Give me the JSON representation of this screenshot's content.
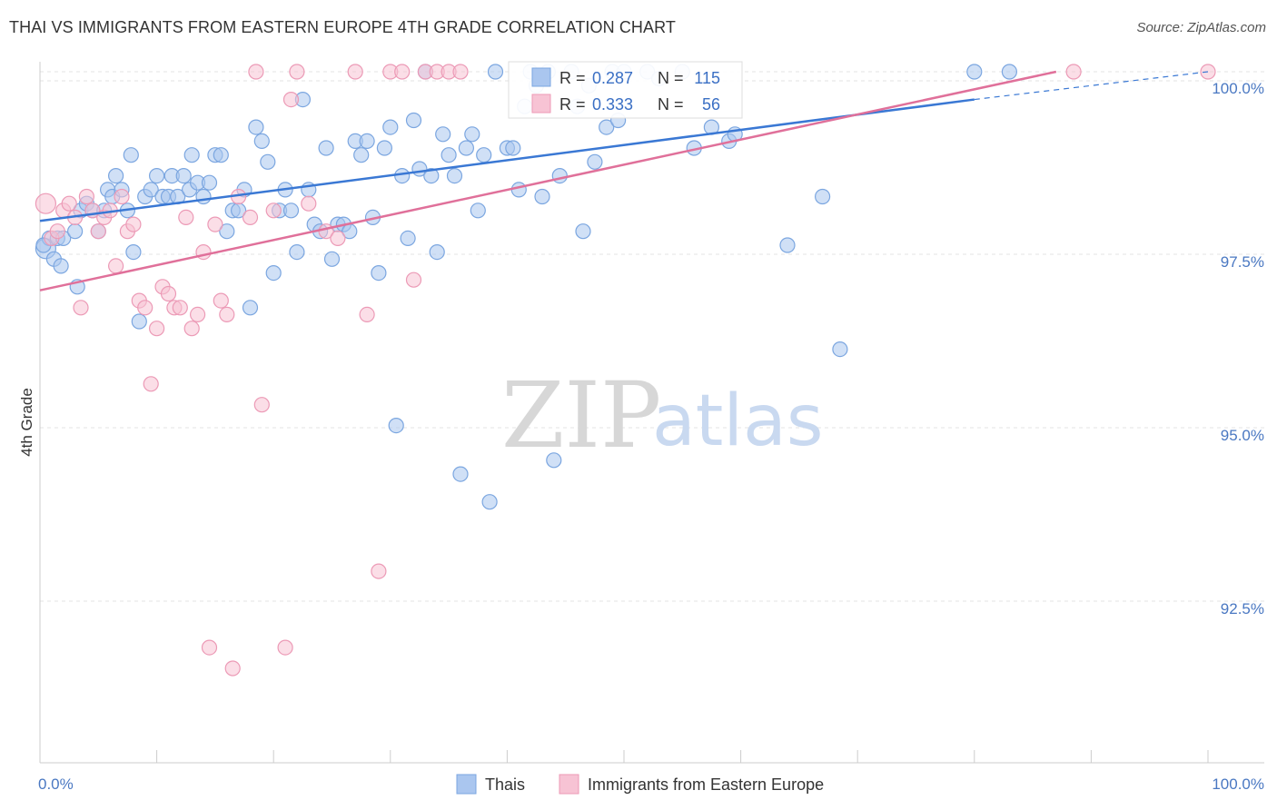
{
  "header": {
    "title": "THAI VS IMMIGRANTS FROM EASTERN EUROPE 4TH GRADE CORRELATION CHART",
    "source": "Source: ZipAtlas.com"
  },
  "watermark": {
    "zip": "ZIP",
    "atlas": "atlas"
  },
  "chart_data": {
    "type": "scatter",
    "title": "THAI VS IMMIGRANTS FROM EASTERN EUROPE 4TH GRADE CORRELATION CHART",
    "xlabel": "",
    "ylabel": "4th Grade",
    "xlim": [
      0,
      100
    ],
    "ylim": [
      90.0,
      100.4
    ],
    "x_tick_labels": [
      "0.0%",
      "100.0%"
    ],
    "y_ticks": [
      {
        "value": 100.0,
        "label": "100.0%"
      },
      {
        "value": 97.5,
        "label": "97.5%"
      },
      {
        "value": 95.0,
        "label": "95.0%"
      },
      {
        "value": 92.5,
        "label": "92.5%"
      }
    ],
    "grid": true,
    "legend_position": "top-center",
    "stats": [
      {
        "r_label": "R =",
        "r": "0.287",
        "n_label": "N =",
        "n": "115"
      },
      {
        "r_label": "R =",
        "r": "0.333",
        "n_label": "N =",
        "n": "56"
      }
    ],
    "series": [
      {
        "name": "Thais",
        "color": "#7ba6e0",
        "fill": "#aac6ef",
        "trend_color": "#3a78d4",
        "trend": {
          "x": [
            0,
            80
          ],
          "y": [
            97.85,
            99.6
          ],
          "dashed_to": [
            100,
            100.0
          ]
        },
        "points": [
          [
            0.5,
            97.45
          ],
          [
            0.8,
            97.6
          ],
          [
            1.2,
            97.3
          ],
          [
            1.5,
            97.6
          ],
          [
            2.0,
            97.6
          ],
          [
            3.0,
            97.7
          ],
          [
            3.2,
            96.9
          ],
          [
            3.5,
            98.0
          ],
          [
            4.0,
            98.1
          ],
          [
            4.5,
            98.0
          ],
          [
            5.0,
            97.7
          ],
          [
            5.5,
            98.0
          ],
          [
            5.8,
            98.3
          ],
          [
            6.2,
            98.2
          ],
          [
            6.5,
            98.5
          ],
          [
            7.0,
            98.3
          ],
          [
            7.5,
            98.0
          ],
          [
            7.8,
            98.8
          ],
          [
            8.0,
            97.4
          ],
          [
            8.5,
            96.4
          ],
          [
            9.0,
            98.2
          ],
          [
            9.5,
            98.3
          ],
          [
            10.0,
            98.5
          ],
          [
            10.5,
            98.2
          ],
          [
            11.0,
            98.2
          ],
          [
            11.3,
            98.5
          ],
          [
            11.8,
            98.2
          ],
          [
            12.3,
            98.5
          ],
          [
            12.8,
            98.3
          ],
          [
            13.0,
            98.8
          ],
          [
            13.5,
            98.4
          ],
          [
            14.0,
            98.2
          ],
          [
            14.5,
            98.4
          ],
          [
            15.0,
            98.8
          ],
          [
            15.5,
            98.8
          ],
          [
            16.0,
            97.7
          ],
          [
            16.5,
            98.0
          ],
          [
            17.0,
            98.0
          ],
          [
            17.5,
            98.3
          ],
          [
            18.0,
            96.6
          ],
          [
            18.5,
            99.2
          ],
          [
            19.0,
            99.0
          ],
          [
            19.5,
            98.7
          ],
          [
            20.0,
            97.1
          ],
          [
            20.5,
            98.0
          ],
          [
            21.0,
            98.3
          ],
          [
            21.5,
            98.0
          ],
          [
            22.0,
            97.4
          ],
          [
            22.5,
            99.6
          ],
          [
            23.0,
            98.3
          ],
          [
            23.5,
            97.8
          ],
          [
            24.0,
            97.7
          ],
          [
            24.5,
            98.9
          ],
          [
            25.0,
            97.3
          ],
          [
            25.5,
            97.8
          ],
          [
            26.0,
            97.8
          ],
          [
            26.5,
            97.7
          ],
          [
            27.0,
            99.0
          ],
          [
            27.5,
            98.8
          ],
          [
            28.0,
            99.0
          ],
          [
            28.5,
            97.9
          ],
          [
            29.0,
            97.1
          ],
          [
            29.5,
            98.9
          ],
          [
            30.0,
            99.2
          ],
          [
            30.5,
            94.9
          ],
          [
            31.0,
            98.5
          ],
          [
            31.5,
            97.6
          ],
          [
            32.0,
            99.3
          ],
          [
            32.5,
            98.6
          ],
          [
            33.0,
            100.0
          ],
          [
            33.5,
            98.5
          ],
          [
            34.0,
            97.4
          ],
          [
            34.5,
            99.1
          ],
          [
            35.0,
            98.8
          ],
          [
            35.5,
            98.5
          ],
          [
            36.0,
            94.2
          ],
          [
            36.5,
            98.9
          ],
          [
            37.0,
            99.1
          ],
          [
            37.5,
            98.0
          ],
          [
            38.0,
            98.8
          ],
          [
            38.5,
            93.8
          ],
          [
            39.0,
            100.0
          ],
          [
            40.0,
            98.9
          ],
          [
            40.5,
            98.9
          ],
          [
            41.0,
            98.3
          ],
          [
            41.5,
            99.5
          ],
          [
            42.0,
            100.0
          ],
          [
            42.5,
            99.8
          ],
          [
            43.0,
            98.2
          ],
          [
            43.5,
            100.0
          ],
          [
            44.0,
            94.4
          ],
          [
            44.5,
            98.5
          ],
          [
            45.5,
            100.0
          ],
          [
            46.0,
            99.5
          ],
          [
            46.5,
            97.7
          ],
          [
            47.0,
            99.8
          ],
          [
            47.5,
            98.7
          ],
          [
            48.5,
            99.2
          ],
          [
            49.0,
            100.0
          ],
          [
            49.5,
            99.3
          ],
          [
            50.0,
            100.0
          ],
          [
            52.0,
            100.0
          ],
          [
            53.0,
            99.9
          ],
          [
            55.0,
            100.0
          ],
          [
            56.0,
            98.9
          ],
          [
            57.5,
            99.2
          ],
          [
            59.0,
            99.0
          ],
          [
            59.5,
            99.1
          ],
          [
            64.0,
            97.5
          ],
          [
            67.0,
            98.2
          ],
          [
            68.5,
            96.0
          ],
          [
            80.0,
            100.0
          ],
          [
            83.0,
            100.0
          ],
          [
            0.3,
            97.5
          ],
          [
            1.8,
            97.2
          ]
        ]
      },
      {
        "name": "Immigrants from Eastern Europe",
        "color": "#ec9ab6",
        "fill": "#f7c3d4",
        "trend_color": "#e0709a",
        "trend": {
          "x": [
            0,
            87
          ],
          "y": [
            96.85,
            100.0
          ]
        },
        "points": [
          [
            0.5,
            98.1
          ],
          [
            1.0,
            97.6
          ],
          [
            1.5,
            97.7
          ],
          [
            2.0,
            98.0
          ],
          [
            2.5,
            98.1
          ],
          [
            3.0,
            97.9
          ],
          [
            3.5,
            96.6
          ],
          [
            4.0,
            98.2
          ],
          [
            4.5,
            98.0
          ],
          [
            5.0,
            97.7
          ],
          [
            5.5,
            97.9
          ],
          [
            6.0,
            98.0
          ],
          [
            6.5,
            97.2
          ],
          [
            7.0,
            98.2
          ],
          [
            7.5,
            97.7
          ],
          [
            8.0,
            97.8
          ],
          [
            8.5,
            96.7
          ],
          [
            9.0,
            96.6
          ],
          [
            9.5,
            95.5
          ],
          [
            10.0,
            96.3
          ],
          [
            10.5,
            96.9
          ],
          [
            11.0,
            96.8
          ],
          [
            11.5,
            96.6
          ],
          [
            12.0,
            96.6
          ],
          [
            12.5,
            97.9
          ],
          [
            13.0,
            96.3
          ],
          [
            13.5,
            96.5
          ],
          [
            14.0,
            97.4
          ],
          [
            14.5,
            91.7
          ],
          [
            15.0,
            97.8
          ],
          [
            15.5,
            96.7
          ],
          [
            16.0,
            96.5
          ],
          [
            16.5,
            91.4
          ],
          [
            17.0,
            98.2
          ],
          [
            18.0,
            97.9
          ],
          [
            18.5,
            100.0
          ],
          [
            19.0,
            95.2
          ],
          [
            20.0,
            98.0
          ],
          [
            21.0,
            91.7
          ],
          [
            21.5,
            99.6
          ],
          [
            22.0,
            100.0
          ],
          [
            23.0,
            98.1
          ],
          [
            24.5,
            97.7
          ],
          [
            25.5,
            97.6
          ],
          [
            27.0,
            100.0
          ],
          [
            28.0,
            96.5
          ],
          [
            29.0,
            92.8
          ],
          [
            30.0,
            100.0
          ],
          [
            31.0,
            100.0
          ],
          [
            32.0,
            97.0
          ],
          [
            33.0,
            100.0
          ],
          [
            34.0,
            100.0
          ],
          [
            35.0,
            100.0
          ],
          [
            36.0,
            100.0
          ],
          [
            88.5,
            100.0
          ],
          [
            100.0,
            100.0
          ]
        ]
      }
    ]
  }
}
